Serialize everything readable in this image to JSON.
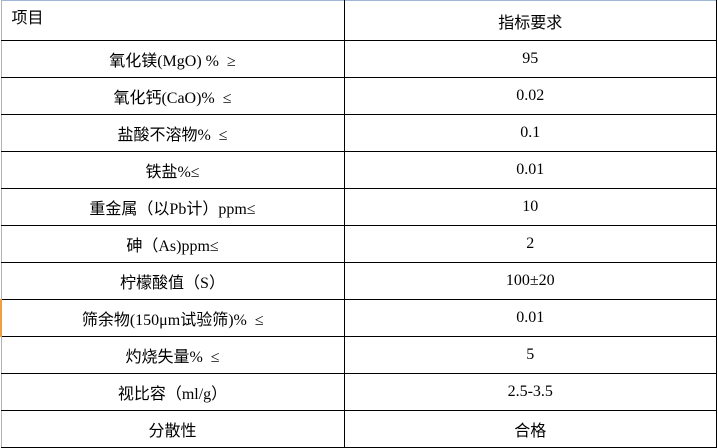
{
  "table": {
    "headers": [
      "项目",
      "指标要求"
    ],
    "rows": [
      [
        "氧化镁(MgO) %  ≥",
        "95"
      ],
      [
        "氧化钙(CaO)%  ≤",
        "0.02"
      ],
      [
        "盐酸不溶物%  ≤",
        "0.1"
      ],
      [
        "铁盐%≤",
        "0.01"
      ],
      [
        "重金属（以Pb计）ppm≤",
        "10"
      ],
      [
        "砷（As)ppm≤",
        "2"
      ],
      [
        "柠檬酸值（S）",
        "100±20"
      ],
      [
        "筛余物(150μm试验筛)%  ≤",
        "0.01"
      ],
      [
        "灼烧失量%  ≤",
        "5"
      ],
      [
        "视比容（ml/g）",
        "2.5-3.5"
      ],
      [
        "分散性",
        "合格"
      ]
    ]
  },
  "colors": {
    "grid": "#000000",
    "outer_edge": "#9fb7d6",
    "selection_mark": "#f0a040"
  }
}
